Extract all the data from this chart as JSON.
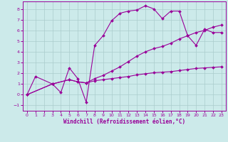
{
  "xlabel": "Windchill (Refroidissement éolien,°C)",
  "background_color": "#cceaea",
  "grid_color": "#aacccc",
  "line_color": "#990099",
  "xlim": [
    -0.5,
    23.5
  ],
  "ylim": [
    -1.5,
    8.7
  ],
  "xticks": [
    0,
    1,
    2,
    3,
    4,
    5,
    6,
    7,
    8,
    9,
    10,
    11,
    12,
    13,
    14,
    15,
    16,
    17,
    18,
    19,
    20,
    21,
    22,
    23
  ],
  "yticks": [
    -1,
    0,
    1,
    2,
    3,
    4,
    5,
    6,
    7,
    8
  ],
  "series1_x": [
    0,
    1,
    3,
    4,
    5,
    6,
    7,
    8,
    9,
    10,
    11,
    12,
    13,
    14,
    15,
    16,
    17,
    18,
    19,
    20,
    21,
    22,
    23
  ],
  "series1_y": [
    0.0,
    1.7,
    1.0,
    0.2,
    2.5,
    1.5,
    -0.7,
    4.6,
    5.5,
    6.9,
    7.6,
    7.8,
    7.9,
    8.3,
    8.0,
    7.1,
    7.8,
    7.8,
    5.5,
    4.6,
    6.1,
    5.8,
    5.8
  ],
  "series2_x": [
    0,
    3,
    5,
    6,
    7,
    8,
    9,
    10,
    11,
    12,
    13,
    14,
    15,
    16,
    17,
    18,
    19,
    20,
    21,
    22,
    23
  ],
  "series2_y": [
    0.0,
    1.0,
    1.4,
    1.2,
    1.1,
    1.3,
    1.4,
    1.5,
    1.6,
    1.7,
    1.85,
    1.95,
    2.05,
    2.1,
    2.15,
    2.25,
    2.35,
    2.45,
    2.5,
    2.55,
    2.6
  ],
  "series3_x": [
    0,
    3,
    5,
    6,
    7,
    8,
    9,
    10,
    11,
    12,
    13,
    14,
    15,
    16,
    17,
    18,
    19,
    20,
    21,
    22,
    23
  ],
  "series3_y": [
    0.0,
    1.0,
    1.4,
    1.2,
    1.1,
    1.5,
    1.8,
    2.2,
    2.6,
    3.1,
    3.6,
    4.0,
    4.3,
    4.5,
    4.8,
    5.2,
    5.5,
    5.8,
    6.0,
    6.3,
    6.5
  ]
}
